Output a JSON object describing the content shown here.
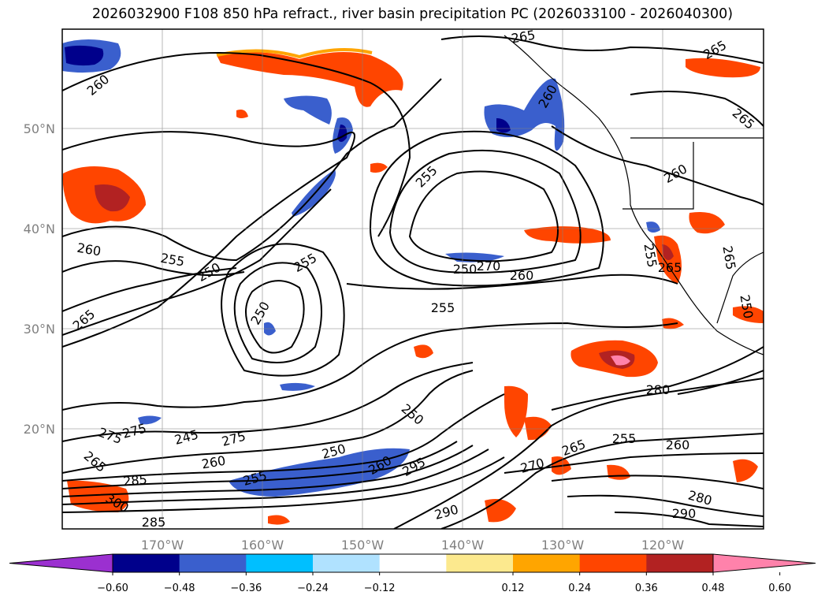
{
  "title": "2026032900 F108 850 hPa refract., river basin precipitation PC (2026033100 - 2026040300)",
  "map": {
    "lon_labels": [
      "170°W",
      "160°W",
      "150°W",
      "140°W",
      "130°W",
      "120°W"
    ],
    "lat_labels": [
      "50°N",
      "40°N",
      "30°N",
      "20°N"
    ],
    "grid": true,
    "contour_labels": [
      "265",
      "260",
      "260",
      "265",
      "255",
      "260",
      "265",
      "260",
      "255",
      "250",
      "255",
      "250",
      "265",
      "270",
      "260",
      "255",
      "250",
      "245",
      "280",
      "275",
      "275",
      "275",
      "265",
      "250",
      "260",
      "255",
      "285",
      "300",
      "285",
      "295",
      "290",
      "270",
      "265",
      "255",
      "260",
      "280",
      "290",
      "260",
      "265",
      "250",
      "265",
      "255",
      "250"
    ]
  },
  "colorbar": {
    "orientation": "horizontal",
    "extend": "both",
    "tick_labels": [
      "−0.60",
      "−0.48",
      "−0.36",
      "−0.24",
      "−0.12",
      "0.12",
      "0.24",
      "0.36",
      "0.48",
      "0.60"
    ],
    "colors": [
      "#9b30d0",
      "#00008b",
      "#3a5fcd",
      "#00bfff",
      "#b0e2ff",
      "#ffffff",
      "#fce98e",
      "#ffa500",
      "#ff4500",
      "#b22222",
      "#ff82ab"
    ]
  }
}
